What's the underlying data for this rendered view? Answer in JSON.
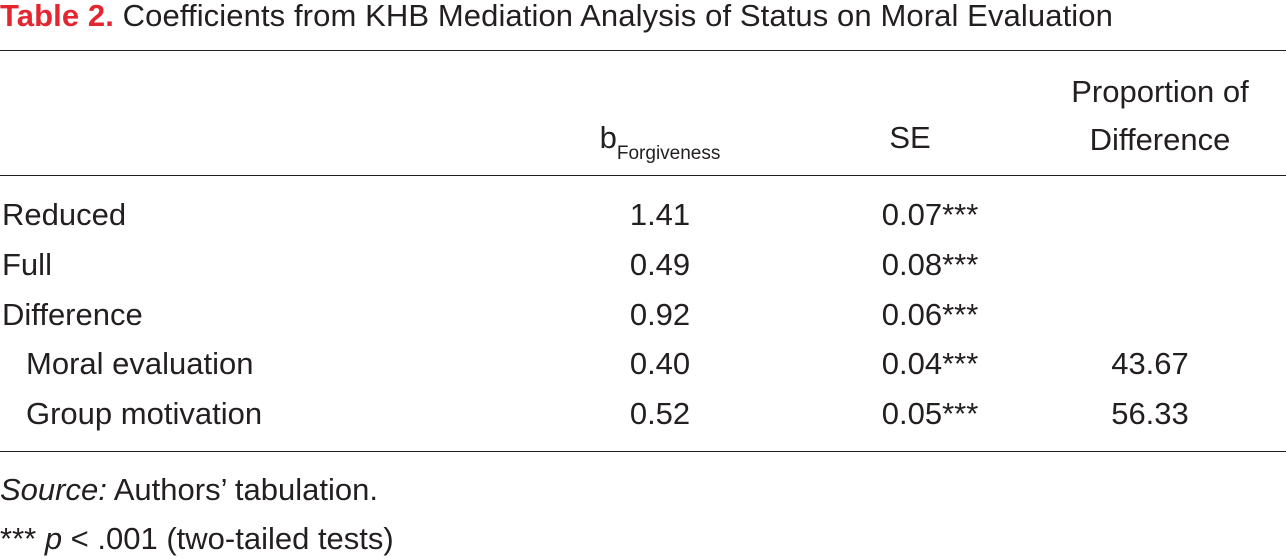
{
  "table": {
    "label": "Table 2.",
    "title": "Coefficients from KHB Mediation Analysis of Status on Moral Evaluation",
    "colors": {
      "label": "#e3262f",
      "text": "#231f20"
    },
    "headers": {
      "b_main": "b",
      "b_sub": "Forgiveness",
      "se": "SE",
      "prop_line1": "Proportion of",
      "prop_line2": "Difference"
    },
    "rows": [
      {
        "label": "Reduced",
        "b": "1.41",
        "se": "0.07***",
        "prop": ""
      },
      {
        "label": "Full",
        "b": "0.49",
        "se": "0.08***",
        "prop": ""
      },
      {
        "label": "Difference",
        "b": "0.92",
        "se": "0.06***",
        "prop": ""
      },
      {
        "label": "Moral evaluation",
        "b": "0.40",
        "se": "0.04***",
        "prop": "43.67"
      },
      {
        "label": "Group motivation",
        "b": "0.52",
        "se": "0.05***",
        "prop": "56.33"
      }
    ],
    "notes": {
      "source_label": "Source:",
      "source_text": " Authors’ tabulation.",
      "sig_prefix": "*** ",
      "sig_p": "p",
      "sig_text": " < .001 (two-tailed tests)"
    }
  }
}
